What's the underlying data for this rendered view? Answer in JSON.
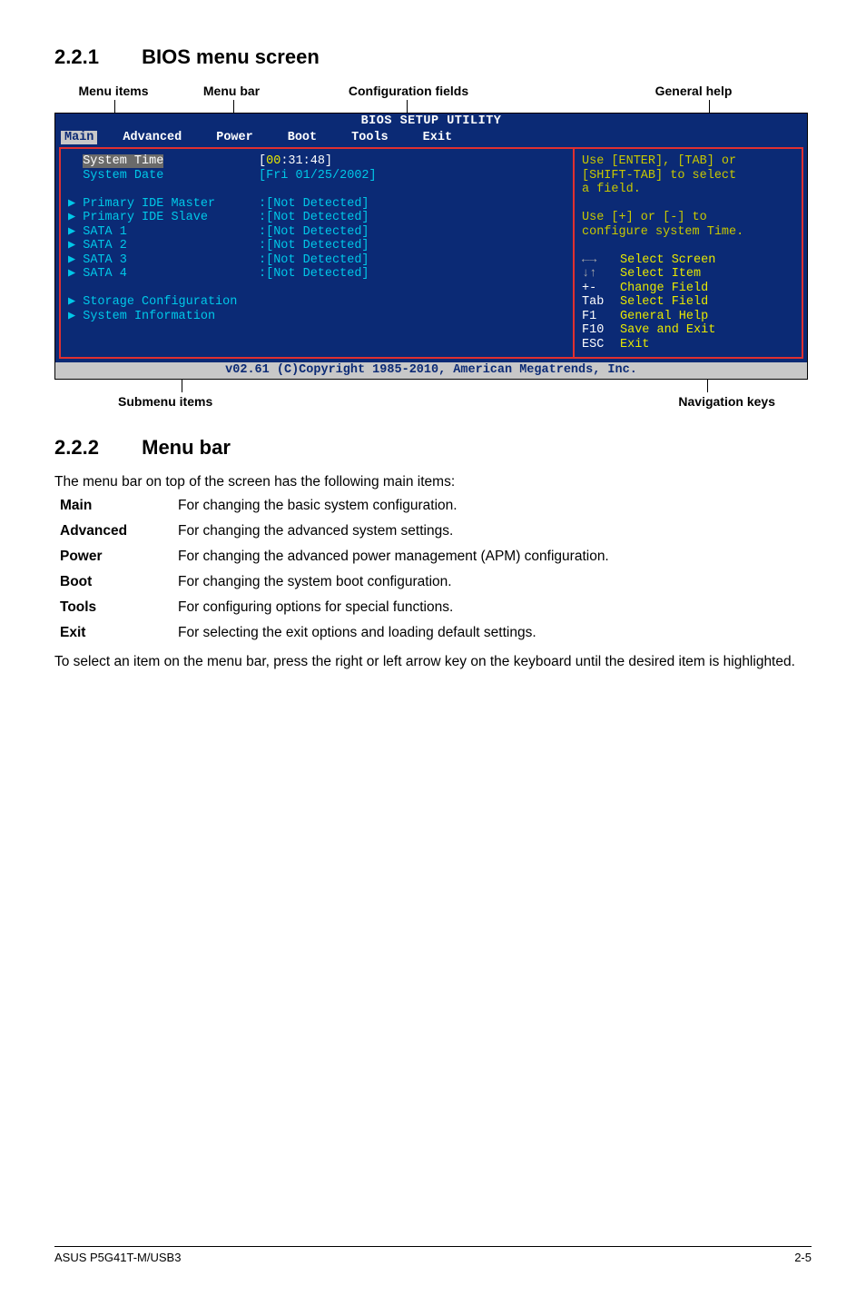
{
  "section221": {
    "num": "2.2.1",
    "title": "BIOS menu screen"
  },
  "topLabels": {
    "menuItems": "Menu items",
    "menuBar": "Menu bar",
    "configFields": "Configuration fields",
    "generalHelp": "General help"
  },
  "bios": {
    "headerTitle": "BIOS SETUP UTILITY",
    "tabs": [
      "Main",
      "Advanced",
      "Power",
      "Boot",
      "Tools",
      "Exit"
    ],
    "selectedTab": 0,
    "leftRows": [
      {
        "label": "System Time",
        "value": "[00:31:48]",
        "selected": true,
        "highlightIndex": "00"
      },
      {
        "label": "System Date",
        "value": "[Fri 01/25/2002]"
      }
    ],
    "detectRows": [
      {
        "label": "Primary IDE Master",
        "value": ":[Not Detected]",
        "tri": true
      },
      {
        "label": "Primary IDE Slave",
        "value": ":[Not Detected]",
        "tri": true
      },
      {
        "label": "SATA 1",
        "value": ":[Not Detected]",
        "tri": true
      },
      {
        "label": "SATA 2",
        "value": ":[Not Detected]",
        "tri": true
      },
      {
        "label": "SATA 3",
        "value": ":[Not Detected]",
        "tri": true
      },
      {
        "label": "SATA 4",
        "value": ":[Not Detected]",
        "tri": true
      }
    ],
    "subItems": [
      {
        "label": "Storage Configuration"
      },
      {
        "label": "System Information"
      }
    ],
    "helpTop": [
      "Use [ENTER], [TAB] or",
      "[SHIFT-TAB] to select",
      "a field.",
      "",
      "Use [+] or [-] to",
      "configure system Time."
    ],
    "helpKeys": [
      {
        "k": "←→",
        "d": "Select Screen",
        "arrow": true
      },
      {
        "k": "↓↑",
        "d": "Select Item",
        "arrow": true
      },
      {
        "k": "+-",
        "d": "Change Field"
      },
      {
        "k": "Tab",
        "d": "Select Field"
      },
      {
        "k": "F1",
        "d": "General Help"
      },
      {
        "k": "F10",
        "d": "Save and Exit"
      },
      {
        "k": "ESC",
        "d": "Exit"
      }
    ],
    "footer": "v02.61 (C)Copyright 1985-2010, American Megatrends, Inc."
  },
  "bottomLabels": {
    "submenu": "Submenu items",
    "navkeys": "Navigation keys"
  },
  "section222": {
    "num": "2.2.2",
    "title": "Menu bar",
    "intro": "The menu bar on top of the screen has the following main items:",
    "defs": [
      {
        "term": "Main",
        "desc": "For changing the basic system configuration."
      },
      {
        "term": "Advanced",
        "desc": "For changing the advanced system settings."
      },
      {
        "term": "Power",
        "desc": "For changing the advanced power management (APM) configuration."
      },
      {
        "term": "Boot",
        "desc": "For changing the system boot configuration."
      },
      {
        "term": "Tools",
        "desc": "For configuring options for special functions."
      },
      {
        "term": "Exit",
        "desc": "For selecting the exit options and loading default settings."
      }
    ],
    "outro": "To select an item on the menu bar, press the right or left arrow key on the keyboard until the desired item is highlighted."
  },
  "pageFooter": {
    "left": "ASUS P5G41T-M/USB3",
    "right": "2-5"
  }
}
